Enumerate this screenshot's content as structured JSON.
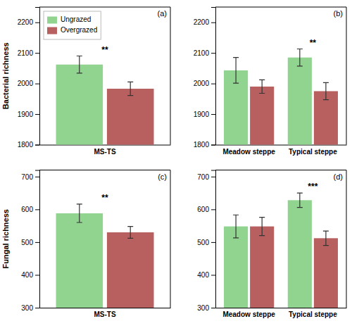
{
  "chart_data": [
    {
      "type": "bar",
      "title": "(a)",
      "ylabel": "Bacterial richness",
      "categories": [
        "MS-TS"
      ],
      "series": [
        {
          "name": "Ungrazed",
          "color": "#90D490",
          "values": [
            2062
          ],
          "errors": [
            28
          ]
        },
        {
          "name": "Overgrazed",
          "color": "#B86060",
          "values": [
            1983
          ],
          "errors": [
            22
          ]
        }
      ],
      "ylim": [
        1800,
        2250
      ],
      "yticks": [
        1800,
        1900,
        2000,
        2100,
        2200
      ],
      "annotations": [
        {
          "text": "**",
          "category": "MS-TS"
        }
      ],
      "legend": "upper left"
    },
    {
      "type": "bar",
      "title": "(b)",
      "categories": [
        "Meadow steppe",
        "Typical steppe"
      ],
      "series": [
        {
          "color": "#90D490",
          "values": [
            2043,
            2085
          ],
          "errors": [
            42,
            28
          ]
        },
        {
          "color": "#B86060",
          "values": [
            1990,
            1975
          ],
          "errors": [
            22,
            28
          ]
        }
      ],
      "ylim": [
        1800,
        2250
      ],
      "yticks": [
        1800,
        1900,
        2000,
        2100,
        2200
      ],
      "annotations": [
        {
          "text": "**",
          "category": "Typical steppe"
        }
      ]
    },
    {
      "type": "bar",
      "title": "(c)",
      "ylabel": "Fungal richness",
      "categories": [
        "MS-TS"
      ],
      "series": [
        {
          "color": "#90D490",
          "values": [
            588
          ],
          "errors": [
            28
          ]
        },
        {
          "color": "#B86060",
          "values": [
            530
          ],
          "errors": [
            18
          ]
        }
      ],
      "ylim": [
        300,
        720
      ],
      "yticks": [
        300,
        400,
        500,
        600,
        700
      ],
      "annotations": [
        {
          "text": "**",
          "category": "MS-TS"
        }
      ]
    },
    {
      "type": "bar",
      "title": "(d)",
      "categories": [
        "Meadow steppe",
        "Typical steppe"
      ],
      "series": [
        {
          "color": "#90D490",
          "values": [
            548,
            628
          ],
          "errors": [
            35,
            22
          ]
        },
        {
          "color": "#B86060",
          "values": [
            548,
            512
          ],
          "errors": [
            28,
            22
          ]
        }
      ],
      "ylim": [
        300,
        720
      ],
      "yticks": [
        300,
        400,
        500,
        600,
        700
      ],
      "annotations": [
        {
          "text": "***",
          "category": "Typical steppe"
        }
      ]
    }
  ]
}
